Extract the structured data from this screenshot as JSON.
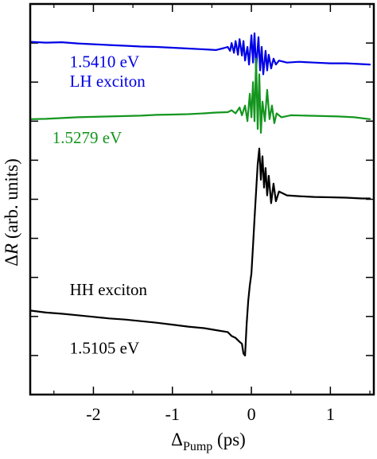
{
  "chart_data": {
    "type": "line",
    "xlabel": {
      "main": "Δ",
      "sub": "Pump",
      "unit": " (ps)"
    },
    "ylabel": {
      "delta": "Δ",
      "var": "R",
      "unit": " (arb. units)"
    },
    "xlim": [
      -2.8,
      1.55
    ],
    "ylim": [
      0,
      10
    ],
    "x_ticks": [
      -2,
      -1,
      0,
      1
    ],
    "x_tick_labels": [
      "-2",
      "-1",
      "0",
      "1"
    ],
    "grid": false,
    "legend": "none",
    "series": [
      {
        "name": "LH exciton",
        "color": "#0000e6",
        "points": [
          [
            -2.8,
            9.03
          ],
          [
            -2.6,
            9.01
          ],
          [
            -2.4,
            9.02
          ],
          [
            -2.2,
            8.99
          ],
          [
            -2.0,
            8.97
          ],
          [
            -1.8,
            8.95
          ],
          [
            -1.6,
            8.93
          ],
          [
            -1.4,
            8.91
          ],
          [
            -1.2,
            8.9
          ],
          [
            -1.0,
            8.88
          ],
          [
            -0.8,
            8.86
          ],
          [
            -0.6,
            8.84
          ],
          [
            -0.45,
            8.82
          ],
          [
            -0.35,
            8.87
          ],
          [
            -0.3,
            8.9
          ],
          [
            -0.27,
            8.8
          ],
          [
            -0.25,
            9.0
          ],
          [
            -0.22,
            8.75
          ],
          [
            -0.2,
            9.05
          ],
          [
            -0.17,
            8.7
          ],
          [
            -0.15,
            9.1
          ],
          [
            -0.12,
            8.68
          ],
          [
            -0.1,
            9.05
          ],
          [
            -0.08,
            8.55
          ],
          [
            -0.05,
            8.9
          ],
          [
            -0.03,
            8.45
          ],
          [
            0.0,
            9.2
          ],
          [
            0.02,
            8.5
          ],
          [
            0.04,
            9.25
          ],
          [
            0.06,
            8.35
          ],
          [
            0.09,
            9.15
          ],
          [
            0.11,
            8.3
          ],
          [
            0.13,
            8.9
          ],
          [
            0.15,
            8.2
          ],
          [
            0.18,
            8.8
          ],
          [
            0.2,
            8.3
          ],
          [
            0.22,
            8.7
          ],
          [
            0.25,
            8.35
          ],
          [
            0.28,
            8.6
          ],
          [
            0.31,
            8.45
          ],
          [
            0.35,
            8.55
          ],
          [
            0.45,
            8.5
          ],
          [
            0.6,
            8.52
          ],
          [
            0.8,
            8.5
          ],
          [
            1.0,
            8.48
          ],
          [
            1.2,
            8.48
          ],
          [
            1.4,
            8.46
          ],
          [
            1.5,
            8.45
          ]
        ]
      },
      {
        "name": "",
        "color": "#14961e",
        "points": [
          [
            -2.8,
            7.05
          ],
          [
            -2.6,
            7.06
          ],
          [
            -2.4,
            7.08
          ],
          [
            -2.2,
            7.1
          ],
          [
            -2.0,
            7.11
          ],
          [
            -1.8,
            7.12
          ],
          [
            -1.6,
            7.13
          ],
          [
            -1.4,
            7.14
          ],
          [
            -1.2,
            7.16
          ],
          [
            -1.0,
            7.17
          ],
          [
            -0.8,
            7.18
          ],
          [
            -0.6,
            7.2
          ],
          [
            -0.45,
            7.22
          ],
          [
            -0.3,
            7.23
          ],
          [
            -0.25,
            7.28
          ],
          [
            -0.2,
            7.2
          ],
          [
            -0.15,
            7.35
          ],
          [
            -0.12,
            7.15
          ],
          [
            -0.08,
            7.4
          ],
          [
            -0.05,
            7.0
          ],
          [
            -0.02,
            7.7
          ],
          [
            0.0,
            7.1
          ],
          [
            0.02,
            8.0
          ],
          [
            0.04,
            7.0
          ],
          [
            0.06,
            8.6
          ],
          [
            0.08,
            6.8
          ],
          [
            0.1,
            8.2
          ],
          [
            0.12,
            6.7
          ],
          [
            0.14,
            7.5
          ],
          [
            0.17,
            7.0
          ],
          [
            0.2,
            7.8
          ],
          [
            0.23,
            7.05
          ],
          [
            0.26,
            7.4
          ],
          [
            0.29,
            6.95
          ],
          [
            0.32,
            7.2
          ],
          [
            0.38,
            7.1
          ],
          [
            0.5,
            7.15
          ],
          [
            0.7,
            7.14
          ],
          [
            0.9,
            7.13
          ],
          [
            1.1,
            7.12
          ],
          [
            1.3,
            7.1
          ],
          [
            1.5,
            7.05
          ]
        ]
      },
      {
        "name": "HH exciton",
        "color": "#000000",
        "points": [
          [
            -2.8,
            2.15
          ],
          [
            -2.6,
            2.1
          ],
          [
            -2.4,
            2.07
          ],
          [
            -2.2,
            2.03
          ],
          [
            -2.0,
            1.99
          ],
          [
            -1.8,
            1.95
          ],
          [
            -1.6,
            1.92
          ],
          [
            -1.4,
            1.88
          ],
          [
            -1.2,
            1.84
          ],
          [
            -1.0,
            1.79
          ],
          [
            -0.8,
            1.74
          ],
          [
            -0.6,
            1.7
          ],
          [
            -0.45,
            1.65
          ],
          [
            -0.3,
            1.6
          ],
          [
            -0.25,
            1.5
          ],
          [
            -0.2,
            1.45
          ],
          [
            -0.15,
            1.35
          ],
          [
            -0.12,
            1.3
          ],
          [
            -0.1,
            1.05
          ],
          [
            -0.08,
            1.0
          ],
          [
            -0.06,
            1.8
          ],
          [
            -0.04,
            2.4
          ],
          [
            -0.02,
            2.8
          ],
          [
            0.0,
            3.1
          ],
          [
            0.02,
            3.8
          ],
          [
            0.04,
            4.5
          ],
          [
            0.06,
            5.2
          ],
          [
            0.08,
            5.9
          ],
          [
            0.1,
            6.3
          ],
          [
            0.12,
            5.5
          ],
          [
            0.14,
            6.1
          ],
          [
            0.16,
            5.3
          ],
          [
            0.18,
            5.8
          ],
          [
            0.2,
            5.1
          ],
          [
            0.22,
            5.6
          ],
          [
            0.25,
            4.9
          ],
          [
            0.28,
            5.4
          ],
          [
            0.31,
            4.95
          ],
          [
            0.35,
            5.2
          ],
          [
            0.45,
            5.1
          ],
          [
            0.6,
            5.08
          ],
          [
            0.8,
            5.06
          ],
          [
            1.0,
            5.05
          ],
          [
            1.2,
            5.04
          ],
          [
            1.4,
            5.02
          ],
          [
            1.5,
            5.02
          ]
        ]
      }
    ],
    "annotations": [
      {
        "text": "1.5410 eV",
        "x": -2.3,
        "y": 8.38,
        "color": "#0000e6"
      },
      {
        "text": "LH exciton",
        "x": -2.3,
        "y": 7.88,
        "color": "#0000e6"
      },
      {
        "text": "1.5279 eV",
        "x": -2.52,
        "y": 6.44,
        "color": "#14961e"
      },
      {
        "text": "HH exciton",
        "x": -2.3,
        "y": 2.55,
        "color": "#000000"
      },
      {
        "text": "1.5105 eV",
        "x": -2.3,
        "y": 1.05,
        "color": "#000000"
      }
    ]
  }
}
